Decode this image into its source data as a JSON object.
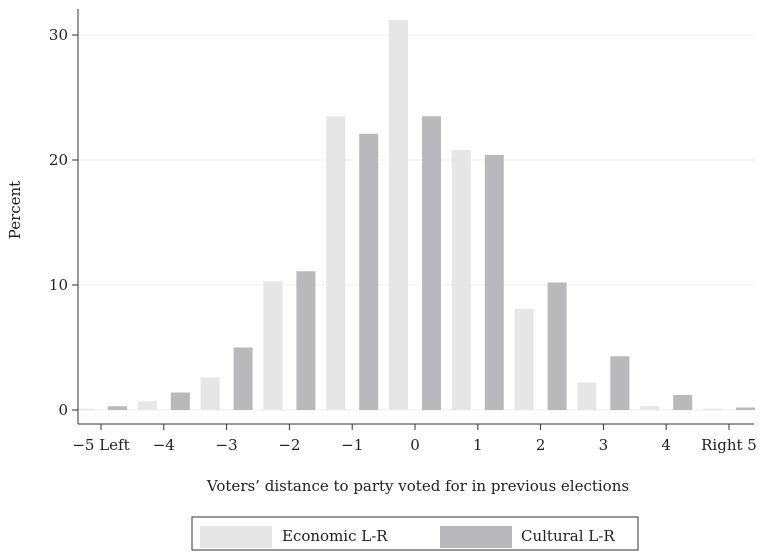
{
  "chart_data": {
    "type": "bar",
    "xlabel": "Voters’ distance to party voted for in previous elections",
    "ylabel": "Percent",
    "ylim": [
      0,
      32.5
    ],
    "yticks": [
      0,
      10,
      20,
      30
    ],
    "grid": true,
    "legend_position": "bottom",
    "categories": [
      "−5 Left",
      "−4",
      "−3",
      "−2",
      "−1",
      "0",
      "1",
      "2",
      "3",
      "4",
      "Right 5"
    ],
    "series": [
      {
        "name": "Economic L-R",
        "color": "#e6e6e7",
        "values": [
          0.1,
          0.7,
          2.6,
          10.3,
          23.5,
          31.2,
          20.8,
          8.1,
          2.2,
          0.3,
          0.1
        ]
      },
      {
        "name": "Cultural L-R",
        "color": "#b9b9bb",
        "values": [
          0.3,
          1.4,
          5.0,
          11.1,
          22.1,
          23.5,
          20.4,
          10.2,
          4.3,
          1.2,
          0.2
        ]
      }
    ]
  }
}
